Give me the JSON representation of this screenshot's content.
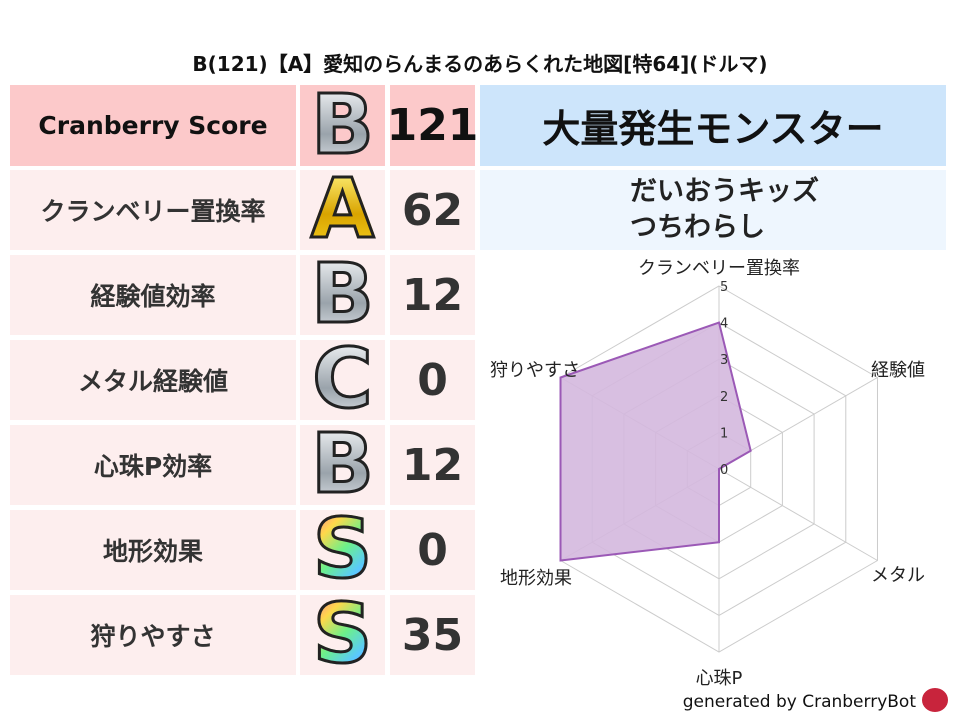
{
  "title": "B(121)【A】愛知のらんまるのあらくれた地図[特64](ドルマ)",
  "rows": [
    {
      "label": "Cranberry Score",
      "grade": "B",
      "value": "121"
    },
    {
      "label": "クランベリー置換率",
      "grade": "A",
      "value": "62"
    },
    {
      "label": "経験値効率",
      "grade": "B",
      "value": "12"
    },
    {
      "label": "メタル経験値",
      "grade": "C",
      "value": "0"
    },
    {
      "label": "心珠P効率",
      "grade": "B",
      "value": "12"
    },
    {
      "label": "地形効果",
      "grade": "S",
      "value": "0"
    },
    {
      "label": "狩りやすさ",
      "grade": "S",
      "value": "35"
    }
  ],
  "monster_header": "大量発生モンスター",
  "monsters": [
    "だいおうキッズ",
    "つちわらし"
  ],
  "footer": "generated by CranberryBot",
  "chart_data": {
    "type": "radar",
    "axes": [
      "クランベリー置換率",
      "経験値",
      "メタル",
      "心珠P",
      "地形効果",
      "狩りやすさ"
    ],
    "values": [
      4,
      1,
      0,
      2,
      5,
      5
    ],
    "range": [
      0,
      5
    ],
    "ticks": [
      "0",
      "1",
      "2",
      "3",
      "4",
      "5"
    ],
    "fill_color": "#d4b8de",
    "line_color": "#9b59b6"
  }
}
